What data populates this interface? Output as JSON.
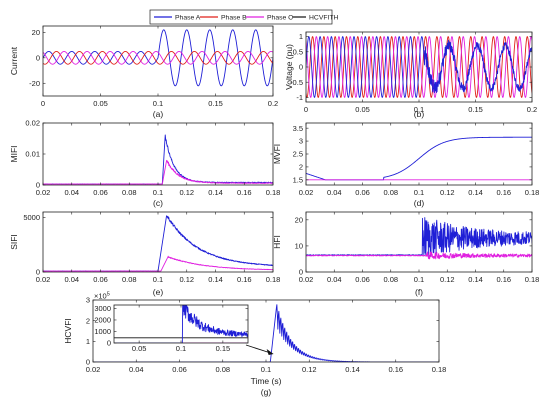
{
  "legend": {
    "placement": "top-center",
    "entries": [
      {
        "name": "Phase A",
        "color": "#1f1fd6"
      },
      {
        "name": "Phase B",
        "color": "#e0201a"
      },
      {
        "name": "Phase C",
        "color": "#e020e0"
      },
      {
        "name": "HCVFITH",
        "color": "#111111"
      }
    ]
  },
  "chart_data": [
    {
      "id": "a",
      "type": "line",
      "caption": "(a)",
      "ylabel": "Current",
      "xlabel": "",
      "xlim": [
        0,
        0.2
      ],
      "ylim": [
        -30,
        25
      ],
      "xticks": [
        0,
        0.05,
        0.1,
        0.15,
        0.2
      ],
      "xtick_labels": [
        "0",
        "0.05",
        "0.1",
        "0.15",
        "0.2"
      ],
      "yticks": [
        -20,
        0,
        20
      ],
      "ytick_labels": [
        "-20",
        "0",
        "20"
      ],
      "series": [
        {
          "color": "#1f1fd6",
          "kind": "current_fault",
          "pre_amplitude": 5,
          "post_amplitude": 22,
          "phase_deg": 0,
          "freq_hz": 50,
          "fault_time": 0.1
        },
        {
          "color": "#e0201a",
          "kind": "sine",
          "amplitude": 5,
          "phase_deg": -120,
          "freq_hz": 50
        },
        {
          "color": "#e020e0",
          "kind": "sine",
          "amplitude": 5,
          "phase_deg": 120,
          "freq_hz": 50
        }
      ]
    },
    {
      "id": "b",
      "type": "line",
      "caption": "(b)",
      "ylabel": "Voltage (pu)",
      "xlabel": "",
      "xlim": [
        0,
        0.2
      ],
      "ylim": [
        -1.15,
        1.15
      ],
      "xticks": [
        0,
        0.05,
        0.1,
        0.15,
        0.2
      ],
      "xtick_labels": [
        "0",
        "0.05",
        "0.1",
        "0.15",
        "0.2"
      ],
      "yticks": [
        -1,
        -0.5,
        0,
        0.5,
        1
      ],
      "ytick_labels": [
        "-1",
        "-0.5",
        "0",
        "0.5",
        "1"
      ],
      "series": [
        {
          "color": "#e0201a",
          "kind": "sine",
          "amplitude": 1,
          "phase_deg": -120,
          "freq_hz": 100
        },
        {
          "color": "#e020e0",
          "kind": "sine",
          "amplitude": 1,
          "phase_deg": 120,
          "freq_hz": 100
        },
        {
          "color": "#1f1fd6",
          "kind": "voltage_fault",
          "amplitude": 1,
          "post_amplitude": 0.4,
          "phase_deg": 0,
          "freq_hz": 100,
          "fault_time": 0.105
        }
      ]
    },
    {
      "id": "c",
      "type": "line",
      "caption": "(c)",
      "ylabel": "MIFI",
      "xlabel": "",
      "xlim": [
        0.02,
        0.18
      ],
      "ylim": [
        0,
        0.02
      ],
      "xticks": [
        0.02,
        0.04,
        0.06,
        0.08,
        0.1,
        0.12,
        0.14,
        0.16,
        0.18
      ],
      "xtick_labels": [
        "0.02",
        "0.04",
        "0.06",
        "0.08",
        "0.1",
        "0.12",
        "0.14",
        "0.16",
        "0.18"
      ],
      "yticks": [
        0,
        0.01,
        0.02
      ],
      "ytick_labels": [
        "0",
        "0.01",
        "0.02"
      ],
      "series": [
        {
          "color": "#1f1fd6",
          "kind": "spike",
          "base": 0.0003,
          "peak": 0.016,
          "t0": 0.103,
          "tpeak": 0.105,
          "tau": 0.006,
          "tail": 0.0008,
          "noise": 0.0009
        },
        {
          "color": "#e020e0",
          "kind": "spike",
          "base": 0.0003,
          "peak": 0.008,
          "t0": 0.103,
          "tpeak": 0.106,
          "tau": 0.008,
          "tail": 0.0006,
          "noise": 0.0008
        }
      ]
    },
    {
      "id": "d",
      "type": "line",
      "caption": "(d)",
      "ylabel": "MVFI",
      "xlabel": "",
      "xlim": [
        0.02,
        0.18
      ],
      "ylim": [
        1.3,
        3.7
      ],
      "xticks": [
        0.02,
        0.04,
        0.06,
        0.08,
        0.1,
        0.12,
        0.14,
        0.16,
        0.18
      ],
      "xtick_labels": [
        "0.02",
        "0.04",
        "0.06",
        "0.08",
        "0.1",
        "0.12",
        "0.14",
        "0.16",
        "0.18"
      ],
      "yticks": [
        1.5,
        2,
        2.5,
        3,
        3.5
      ],
      "ytick_labels": [
        "1.5",
        "2",
        "2.5",
        "3",
        "3.5"
      ],
      "series": [
        {
          "color": "#1f1fd6",
          "kind": "sigmoid_rise",
          "start": 1.75,
          "low": 1.5,
          "high": 3.15,
          "t_start": 0.075,
          "t_mid": 0.1,
          "width": 0.009
        },
        {
          "color": "#e020e0",
          "kind": "constant",
          "value": 1.5
        }
      ]
    },
    {
      "id": "e",
      "type": "line",
      "caption": "(e)",
      "ylabel": "SIFI",
      "xlabel": "",
      "xlim": [
        0.02,
        0.18
      ],
      "ylim": [
        0,
        5500
      ],
      "xticks": [
        0.02,
        0.04,
        0.06,
        0.08,
        0.1,
        0.12,
        0.14,
        0.16,
        0.18
      ],
      "xtick_labels": [
        "0.02",
        "0.04",
        "0.06",
        "0.08",
        "0.1",
        "0.12",
        "0.14",
        "0.16",
        "0.18"
      ],
      "yticks": [
        0,
        5000
      ],
      "ytick_labels": [
        "0",
        "5000"
      ],
      "series": [
        {
          "color": "#1f1fd6",
          "kind": "spike",
          "base": 80,
          "peak": 5200,
          "t0": 0.1,
          "tpeak": 0.106,
          "tau": 0.022,
          "tail": 450,
          "noise": 220
        },
        {
          "color": "#e020e0",
          "kind": "spike",
          "base": 80,
          "peak": 1400,
          "t0": 0.102,
          "tpeak": 0.107,
          "tau": 0.025,
          "tail": 150,
          "noise": 90
        }
      ]
    },
    {
      "id": "f",
      "type": "line",
      "caption": "(f)",
      "ylabel": "HFI",
      "xlabel": "",
      "xlim": [
        0.02,
        0.18
      ],
      "ylim": [
        0,
        23
      ],
      "xticks": [
        0.02,
        0.04,
        0.06,
        0.08,
        0.1,
        0.12,
        0.14,
        0.16,
        0.18
      ],
      "xtick_labels": [
        "0.02",
        "0.04",
        "0.06",
        "0.08",
        "0.1",
        "0.12",
        "0.14",
        "0.16",
        "0.18"
      ],
      "yticks": [
        0,
        10,
        20
      ],
      "ytick_labels": [
        "0",
        "10",
        "20"
      ],
      "series": [
        {
          "color": "#1f1fd6",
          "kind": "noisy_band",
          "base": 6.5,
          "post": 13,
          "t0": 0.102,
          "amp0": 9,
          "amp1": 2,
          "tau": 0.03
        },
        {
          "color": "#e020e0",
          "kind": "noisy_band",
          "base": 6.3,
          "post": 6.3,
          "t0": 0.105,
          "amp0": 1.5,
          "amp1": 0.5,
          "tau": 0.03
        }
      ]
    },
    {
      "id": "g",
      "type": "line",
      "caption": "(g)",
      "ylabel": "HCVFI",
      "xlabel": "Time (s)",
      "xlim": [
        0.02,
        0.18
      ],
      "ylim": [
        0,
        300000.0
      ],
      "exponent_label": "×10",
      "exponent": "5",
      "xticks": [
        0.02,
        0.04,
        0.06,
        0.08,
        0.1,
        0.12,
        0.14,
        0.16,
        0.18
      ],
      "xtick_labels": [
        "0.02",
        "0.04",
        "0.06",
        "0.08",
        "0.1",
        "0.12",
        "0.14",
        "0.16",
        "0.18"
      ],
      "yticks": [
        0,
        100000,
        200000,
        300000
      ],
      "ytick_labels": [
        "0",
        "1",
        "2",
        "3"
      ],
      "series": [
        {
          "color": "#1f1fd6",
          "kind": "decaying_oscillation",
          "base": 0,
          "peak": 280000,
          "t0": 0.102,
          "tpeak": 0.105,
          "tau": 0.007,
          "freq_hz": 550
        }
      ],
      "inset": {
        "xlim": [
          0.02,
          0.18
        ],
        "ylim": [
          0,
          3300
        ],
        "xticks": [
          0.05,
          0.1,
          0.15
        ],
        "xtick_labels": [
          "0.05",
          "0.1",
          "0.15"
        ],
        "yticks": [
          0,
          1000,
          2000,
          3000
        ],
        "ytick_labels": [
          "0",
          "1000",
          "2000",
          "3000"
        ],
        "threshold": {
          "color": "#111111",
          "value": 450
        },
        "series": [
          {
            "color": "#e020e0",
            "kind": "constant",
            "value": 0
          },
          {
            "color": "#1f1fd6",
            "kind": "inset_blue",
            "t0": 0.102,
            "peak": 3300,
            "tau": 0.02,
            "tail": 700
          }
        ]
      }
    }
  ]
}
